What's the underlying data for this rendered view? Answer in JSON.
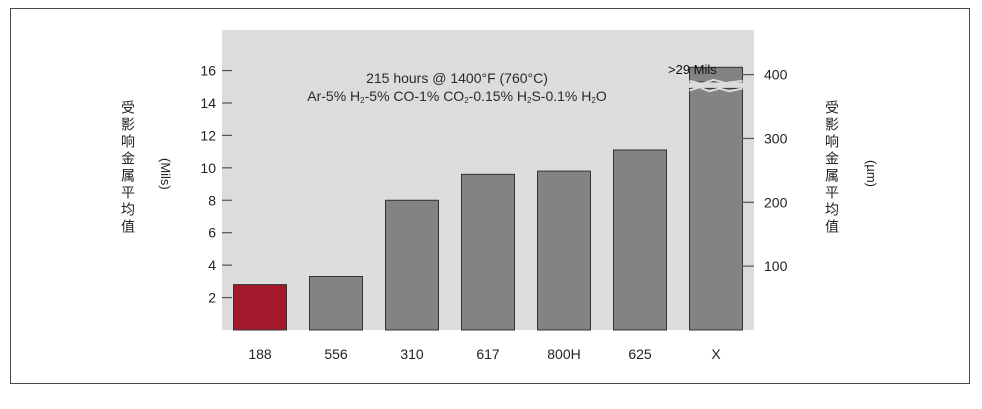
{
  "chart_data": {
    "type": "bar",
    "categories": [
      "188",
      "556",
      "310",
      "617",
      "800H",
      "625",
      "X"
    ],
    "values": [
      2.8,
      3.3,
      8.0,
      9.6,
      9.8,
      11.1,
      29
    ],
    "value_note": ">29 Mils",
    "annotation_line1": "215 hours @ 1400°F (760°C)",
    "annotation_line2": {
      "t1": "Ar-5% H",
      "s1": "2",
      "t2": "-5% CO-1% CO",
      "s2": "2",
      "t3": "-0.15% H",
      "s3": "2",
      "t4": "S-0.1% H",
      "s4": "2",
      "t5": "O"
    },
    "ylabel_left": "受影响金属平均值",
    "ylabel_left_unit": "(Mils)",
    "ylabel_right": "受影响金属平均值",
    "ylabel_right_unit": "(µm)",
    "yticks_left": [
      2,
      4,
      6,
      8,
      10,
      12,
      14,
      16
    ],
    "ylim_left": [
      0,
      18.5
    ],
    "yticks_right": [
      100,
      200,
      300,
      400
    ],
    "right_axis_conversion_um_per_mil": 25.4,
    "colors": {
      "highlight_bar": "#a3192b",
      "bar": "#838383",
      "plot_background": "#dcdcdc",
      "axis": "#555555"
    },
    "grid": false
  }
}
